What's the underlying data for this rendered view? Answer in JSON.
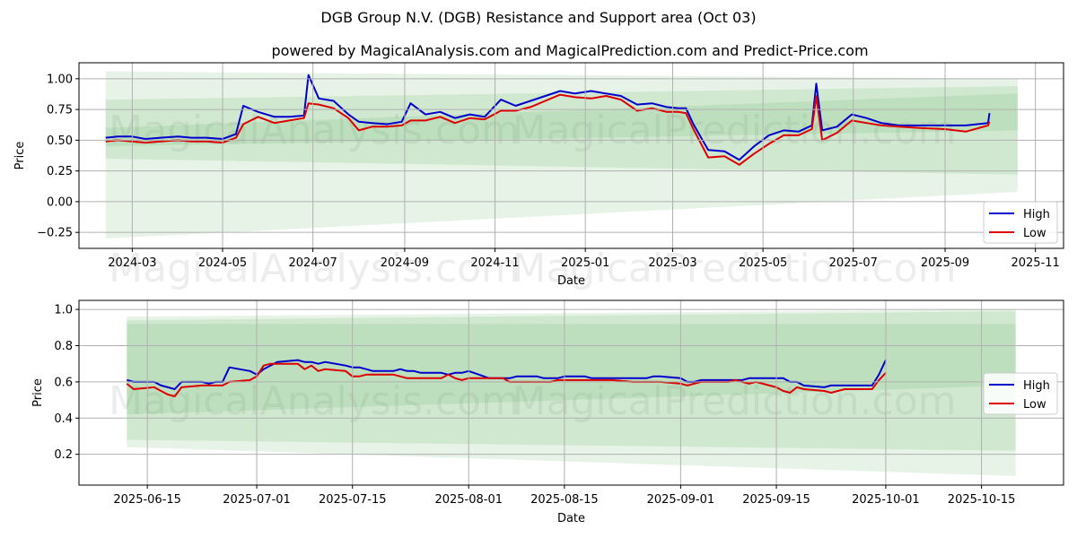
{
  "title": "DGB Group N.V. (DGB) Resistance and Support area (Oct 03)",
  "subtitle": "powered by MagicalAnalysis.com and MagicalPrediction.com and Predict-Price.com",
  "watermarks": [
    "MagicalAnalysis.com",
    "MagicalPrediction.com"
  ],
  "colors": {
    "high": "#0000cc",
    "low": "#dd0000",
    "band": "#5aad5a"
  },
  "chart_data": [
    {
      "type": "line",
      "xlabel": "Date",
      "ylabel": "Price",
      "grid": true,
      "legend_position": "bottom-right",
      "xlim": [
        "2024-01-25",
        "2025-11-20"
      ],
      "ylim": [
        -0.38,
        1.13
      ],
      "xticks": [
        {
          "date": "2024-03-01",
          "label": "2024-03"
        },
        {
          "date": "2024-05-01",
          "label": "2024-05"
        },
        {
          "date": "2024-07-01",
          "label": "2024-07"
        },
        {
          "date": "2024-09-01",
          "label": "2024-09"
        },
        {
          "date": "2024-11-01",
          "label": "2024-11"
        },
        {
          "date": "2025-01-01",
          "label": "2025-01"
        },
        {
          "date": "2025-03-01",
          "label": "2025-03"
        },
        {
          "date": "2025-05-01",
          "label": "2025-05"
        },
        {
          "date": "2025-07-01",
          "label": "2025-07"
        },
        {
          "date": "2025-09-01",
          "label": "2025-09"
        },
        {
          "date": "2025-11-01",
          "label": "2025-11"
        }
      ],
      "yticks": [
        -0.25,
        0.0,
        0.25,
        0.5,
        0.75,
        1.0
      ],
      "ytick_labels": [
        "−0.25",
        "0.00",
        "0.25",
        "0.50",
        "0.75",
        "1.00"
      ],
      "bands": [
        {
          "x": [
            "2024-02-12",
            "2025-10-20"
          ],
          "upper": [
            1.06,
            1.0
          ],
          "lower": [
            -0.3,
            0.08
          ]
        },
        {
          "x": [
            "2024-02-12",
            "2025-10-20"
          ],
          "upper": [
            0.83,
            0.94
          ],
          "lower": [
            0.35,
            0.22
          ]
        },
        {
          "x": [
            "2024-02-12",
            "2025-10-20"
          ],
          "upper": [
            0.6,
            0.88
          ],
          "lower": [
            0.45,
            0.58
          ]
        }
      ],
      "series": [
        {
          "name": "High",
          "x": [
            "2024-02-12",
            "2024-02-20",
            "2024-03-01",
            "2024-03-10",
            "2024-03-20",
            "2024-04-01",
            "2024-04-10",
            "2024-04-20",
            "2024-05-01",
            "2024-05-10",
            "2024-05-15",
            "2024-05-25",
            "2024-06-05",
            "2024-06-15",
            "2024-06-25",
            "2024-06-28",
            "2024-07-05",
            "2024-07-15",
            "2024-07-25",
            "2024-08-01",
            "2024-08-10",
            "2024-08-20",
            "2024-08-30",
            "2024-09-05",
            "2024-09-15",
            "2024-09-25",
            "2024-10-05",
            "2024-10-15",
            "2024-10-25",
            "2024-11-05",
            "2024-11-15",
            "2024-11-25",
            "2024-12-05",
            "2024-12-15",
            "2024-12-25",
            "2025-01-05",
            "2025-01-15",
            "2025-01-25",
            "2025-02-05",
            "2025-02-15",
            "2025-02-25",
            "2025-03-05",
            "2025-03-10",
            "2025-03-15",
            "2025-03-25",
            "2025-04-05",
            "2025-04-15",
            "2025-04-25",
            "2025-05-05",
            "2025-05-15",
            "2025-05-25",
            "2025-06-03",
            "2025-06-06",
            "2025-06-10",
            "2025-06-20",
            "2025-06-30",
            "2025-07-10",
            "2025-07-20",
            "2025-08-01",
            "2025-08-15",
            "2025-09-01",
            "2025-09-15",
            "2025-09-30",
            "2025-10-01"
          ],
          "values": [
            0.52,
            0.53,
            0.53,
            0.51,
            0.52,
            0.53,
            0.52,
            0.52,
            0.51,
            0.55,
            0.78,
            0.73,
            0.69,
            0.69,
            0.7,
            1.03,
            0.84,
            0.82,
            0.71,
            0.65,
            0.64,
            0.63,
            0.65,
            0.8,
            0.71,
            0.73,
            0.68,
            0.71,
            0.69,
            0.83,
            0.78,
            0.82,
            0.86,
            0.9,
            0.88,
            0.9,
            0.88,
            0.86,
            0.79,
            0.8,
            0.77,
            0.76,
            0.76,
            0.63,
            0.42,
            0.41,
            0.34,
            0.45,
            0.54,
            0.58,
            0.57,
            0.62,
            0.96,
            0.58,
            0.61,
            0.71,
            0.68,
            0.64,
            0.62,
            0.62,
            0.62,
            0.62,
            0.64,
            0.72
          ]
        },
        {
          "name": "Low",
          "x": [
            "2024-02-12",
            "2024-02-20",
            "2024-03-01",
            "2024-03-10",
            "2024-03-20",
            "2024-04-01",
            "2024-04-10",
            "2024-04-20",
            "2024-05-01",
            "2024-05-10",
            "2024-05-15",
            "2024-05-25",
            "2024-06-05",
            "2024-06-15",
            "2024-06-25",
            "2024-06-28",
            "2024-07-05",
            "2024-07-15",
            "2024-07-25",
            "2024-08-01",
            "2024-08-10",
            "2024-08-20",
            "2024-08-30",
            "2024-09-05",
            "2024-09-15",
            "2024-09-25",
            "2024-10-05",
            "2024-10-15",
            "2024-10-25",
            "2024-11-05",
            "2024-11-15",
            "2024-11-25",
            "2024-12-05",
            "2024-12-15",
            "2024-12-25",
            "2025-01-05",
            "2025-01-15",
            "2025-01-25",
            "2025-02-05",
            "2025-02-15",
            "2025-02-25",
            "2025-03-05",
            "2025-03-10",
            "2025-03-15",
            "2025-03-25",
            "2025-04-05",
            "2025-04-15",
            "2025-04-25",
            "2025-05-05",
            "2025-05-15",
            "2025-05-25",
            "2025-06-03",
            "2025-06-06",
            "2025-06-10",
            "2025-06-20",
            "2025-06-30",
            "2025-07-10",
            "2025-07-20",
            "2025-08-01",
            "2025-08-15",
            "2025-09-01",
            "2025-09-15",
            "2025-09-30",
            "2025-10-01"
          ],
          "values": [
            0.49,
            0.5,
            0.49,
            0.48,
            0.49,
            0.5,
            0.49,
            0.49,
            0.48,
            0.52,
            0.63,
            0.69,
            0.64,
            0.66,
            0.68,
            0.8,
            0.79,
            0.76,
            0.68,
            0.58,
            0.61,
            0.61,
            0.62,
            0.66,
            0.66,
            0.69,
            0.64,
            0.68,
            0.67,
            0.74,
            0.74,
            0.77,
            0.82,
            0.87,
            0.85,
            0.84,
            0.86,
            0.83,
            0.74,
            0.76,
            0.73,
            0.73,
            0.72,
            0.59,
            0.36,
            0.37,
            0.3,
            0.39,
            0.47,
            0.54,
            0.54,
            0.59,
            0.86,
            0.5,
            0.56,
            0.66,
            0.64,
            0.62,
            0.61,
            0.6,
            0.59,
            0.57,
            0.62,
            0.65
          ]
        }
      ]
    },
    {
      "type": "line",
      "xlabel": "Date",
      "ylabel": "Price",
      "grid": true,
      "legend_position": "center-right",
      "xlim": [
        "2025-06-05",
        "2025-10-27"
      ],
      "ylim": [
        0.03,
        1.05
      ],
      "xticks": [
        {
          "date": "2025-06-15",
          "label": "2025-06-15"
        },
        {
          "date": "2025-07-01",
          "label": "2025-07-01"
        },
        {
          "date": "2025-07-15",
          "label": "2025-07-15"
        },
        {
          "date": "2025-08-01",
          "label": "2025-08-01"
        },
        {
          "date": "2025-08-15",
          "label": "2025-08-15"
        },
        {
          "date": "2025-09-01",
          "label": "2025-09-01"
        },
        {
          "date": "2025-09-15",
          "label": "2025-09-15"
        },
        {
          "date": "2025-10-01",
          "label": "2025-10-01"
        },
        {
          "date": "2025-10-15",
          "label": "2025-10-15"
        }
      ],
      "yticks": [
        0.2,
        0.4,
        0.6,
        0.8,
        1.0
      ],
      "ytick_labels": [
        "0.2",
        "0.4",
        "0.6",
        "0.8",
        "1.0"
      ],
      "bands": [
        {
          "x": [
            "2025-06-12",
            "2025-10-20"
          ],
          "upper": [
            0.96,
            1.0
          ],
          "lower": [
            0.24,
            0.08
          ]
        },
        {
          "x": [
            "2025-06-12",
            "2025-10-20"
          ],
          "upper": [
            0.94,
            0.99
          ],
          "lower": [
            0.28,
            0.22
          ]
        },
        {
          "x": [
            "2025-06-12",
            "2025-10-20"
          ],
          "upper": [
            0.92,
            0.92
          ],
          "lower": [
            0.42,
            0.58
          ]
        }
      ],
      "series": [
        {
          "name": "High",
          "x": [
            "2025-06-12",
            "2025-06-13",
            "2025-06-16",
            "2025-06-17",
            "2025-06-18",
            "2025-06-19",
            "2025-06-20",
            "2025-06-23",
            "2025-06-24",
            "2025-06-25",
            "2025-06-26",
            "2025-06-27",
            "2025-06-30",
            "2025-07-01",
            "2025-07-02",
            "2025-07-03",
            "2025-07-04",
            "2025-07-07",
            "2025-07-08",
            "2025-07-09",
            "2025-07-10",
            "2025-07-11",
            "2025-07-14",
            "2025-07-15",
            "2025-07-16",
            "2025-07-17",
            "2025-07-18",
            "2025-07-21",
            "2025-07-22",
            "2025-07-23",
            "2025-07-24",
            "2025-07-25",
            "2025-07-28",
            "2025-07-29",
            "2025-07-30",
            "2025-07-31",
            "2025-08-01",
            "2025-08-04",
            "2025-08-05",
            "2025-08-06",
            "2025-08-07",
            "2025-08-08",
            "2025-08-11",
            "2025-08-12",
            "2025-08-13",
            "2025-08-14",
            "2025-08-15",
            "2025-08-18",
            "2025-08-19",
            "2025-08-20",
            "2025-08-21",
            "2025-08-22",
            "2025-08-25",
            "2025-08-26",
            "2025-08-27",
            "2025-08-28",
            "2025-08-29",
            "2025-09-01",
            "2025-09-02",
            "2025-09-03",
            "2025-09-04",
            "2025-09-05",
            "2025-09-08",
            "2025-09-09",
            "2025-09-10",
            "2025-09-11",
            "2025-09-12",
            "2025-09-15",
            "2025-09-16",
            "2025-09-17",
            "2025-09-18",
            "2025-09-19",
            "2025-09-22",
            "2025-09-23",
            "2025-09-24",
            "2025-09-25",
            "2025-09-26",
            "2025-09-29",
            "2025-09-30",
            "2025-10-01"
          ],
          "values": [
            0.61,
            0.6,
            0.6,
            0.58,
            0.57,
            0.56,
            0.6,
            0.6,
            0.59,
            0.6,
            0.6,
            0.68,
            0.66,
            0.64,
            0.67,
            0.69,
            0.71,
            0.72,
            0.71,
            0.71,
            0.7,
            0.71,
            0.69,
            0.68,
            0.68,
            0.67,
            0.66,
            0.66,
            0.67,
            0.66,
            0.66,
            0.65,
            0.65,
            0.64,
            0.65,
            0.65,
            0.66,
            0.62,
            0.62,
            0.62,
            0.62,
            0.63,
            0.63,
            0.62,
            0.62,
            0.62,
            0.63,
            0.63,
            0.62,
            0.62,
            0.62,
            0.62,
            0.62,
            0.62,
            0.62,
            0.63,
            0.63,
            0.62,
            0.6,
            0.6,
            0.61,
            0.61,
            0.61,
            0.61,
            0.61,
            0.62,
            0.62,
            0.62,
            0.62,
            0.6,
            0.6,
            0.58,
            0.57,
            0.58,
            0.58,
            0.58,
            0.58,
            0.58,
            0.64,
            0.72
          ]
        },
        {
          "name": "Low",
          "x": [
            "2025-06-12",
            "2025-06-13",
            "2025-06-16",
            "2025-06-17",
            "2025-06-18",
            "2025-06-19",
            "2025-06-20",
            "2025-06-23",
            "2025-06-24",
            "2025-06-25",
            "2025-06-26",
            "2025-06-27",
            "2025-06-30",
            "2025-07-01",
            "2025-07-02",
            "2025-07-03",
            "2025-07-04",
            "2025-07-07",
            "2025-07-08",
            "2025-07-09",
            "2025-07-10",
            "2025-07-11",
            "2025-07-14",
            "2025-07-15",
            "2025-07-16",
            "2025-07-17",
            "2025-07-18",
            "2025-07-21",
            "2025-07-22",
            "2025-07-23",
            "2025-07-24",
            "2025-07-25",
            "2025-07-28",
            "2025-07-29",
            "2025-07-30",
            "2025-07-31",
            "2025-08-01",
            "2025-08-04",
            "2025-08-05",
            "2025-08-06",
            "2025-08-07",
            "2025-08-08",
            "2025-08-11",
            "2025-08-12",
            "2025-08-13",
            "2025-08-14",
            "2025-08-15",
            "2025-08-18",
            "2025-08-19",
            "2025-08-20",
            "2025-08-21",
            "2025-08-22",
            "2025-08-25",
            "2025-08-26",
            "2025-08-27",
            "2025-08-28",
            "2025-08-29",
            "2025-09-01",
            "2025-09-02",
            "2025-09-03",
            "2025-09-04",
            "2025-09-05",
            "2025-09-08",
            "2025-09-09",
            "2025-09-10",
            "2025-09-11",
            "2025-09-12",
            "2025-09-15",
            "2025-09-16",
            "2025-09-17",
            "2025-09-18",
            "2025-09-19",
            "2025-09-22",
            "2025-09-23",
            "2025-09-24",
            "2025-09-25",
            "2025-09-26",
            "2025-09-29",
            "2025-09-30",
            "2025-10-01"
          ],
          "values": [
            0.59,
            0.56,
            0.57,
            0.55,
            0.53,
            0.52,
            0.57,
            0.58,
            0.58,
            0.58,
            0.58,
            0.6,
            0.61,
            0.63,
            0.69,
            0.7,
            0.7,
            0.7,
            0.67,
            0.69,
            0.66,
            0.67,
            0.66,
            0.63,
            0.63,
            0.64,
            0.64,
            0.64,
            0.63,
            0.62,
            0.62,
            0.62,
            0.62,
            0.64,
            0.62,
            0.61,
            0.62,
            0.62,
            0.62,
            0.62,
            0.6,
            0.6,
            0.6,
            0.6,
            0.6,
            0.61,
            0.61,
            0.61,
            0.61,
            0.61,
            0.61,
            0.61,
            0.6,
            0.6,
            0.6,
            0.6,
            0.6,
            0.59,
            0.58,
            0.59,
            0.6,
            0.6,
            0.6,
            0.61,
            0.6,
            0.59,
            0.6,
            0.57,
            0.55,
            0.54,
            0.57,
            0.56,
            0.55,
            0.54,
            0.55,
            0.56,
            0.56,
            0.56,
            0.61,
            0.65
          ]
        }
      ]
    }
  ]
}
